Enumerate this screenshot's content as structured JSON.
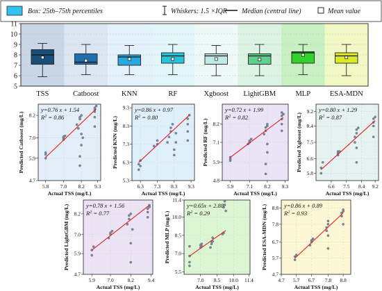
{
  "legend": {
    "box_label": "Box: 25th–75th percentiles",
    "whisker_label": "Whiskers: 1.5 ×IQR",
    "median_label": "Median (central line)",
    "mean_label": "Mean value"
  },
  "chart_data": [
    {
      "type": "box",
      "ylim": [
        5,
        11
      ],
      "yticks": [
        5,
        6,
        7,
        8,
        9,
        10,
        11
      ],
      "grid": true,
      "legend_position": "top",
      "categories": [
        "TSS",
        "Catboost",
        "KNN",
        "RF",
        "Xgboost",
        "LightGBM",
        "MLP",
        "ESA-MDN"
      ],
      "boxes": [
        {
          "name": "TSS",
          "whisker_low": 5.9,
          "q1": 7.1,
          "median": 8.0,
          "q3": 8.5,
          "whisker_high": 9.1,
          "mean": 7.75,
          "box_color": "#1a4f7a",
          "bg": "#c9d6e6"
        },
        {
          "name": "Catboost",
          "whisker_low": 6.1,
          "q1": 7.1,
          "median": 7.3,
          "q3": 8.1,
          "whisker_high": 9.0,
          "mean": 7.45,
          "box_color": "#1f6fae",
          "bg": "#dce6f2"
        },
        {
          "name": "KNN",
          "whisker_low": 6.1,
          "q1": 7.0,
          "median": 7.8,
          "q3": 8.0,
          "whisker_high": 8.9,
          "mean": 7.6,
          "box_color": "#2aa8e0",
          "bg": "#e3f1fa"
        },
        {
          "name": "RF",
          "whisker_low": 6.1,
          "q1": 7.2,
          "median": 7.9,
          "q3": 8.2,
          "whisker_high": 9.0,
          "mean": 7.6,
          "box_color": "#27c5dc",
          "bg": "#e2f5f8"
        },
        {
          "name": "Xgboost",
          "whisker_low": 6.0,
          "q1": 7.1,
          "median": 7.9,
          "q3": 8.1,
          "whisker_high": 8.9,
          "mean": 7.6,
          "box_color": "#bfe9e6",
          "bg": "#eef8f6"
        },
        {
          "name": "LightGBM",
          "whisker_low": 6.0,
          "q1": 7.1,
          "median": 7.9,
          "q3": 8.1,
          "whisker_high": 9.0,
          "mean": 7.55,
          "box_color": "#5dd08e",
          "bg": "#dcf3e4"
        },
        {
          "name": "MLP",
          "whisker_low": 6.1,
          "q1": 7.2,
          "median": 8.2,
          "q3": 8.3,
          "whisker_high": 9.0,
          "mean": 8.0,
          "box_color": "#33d12b",
          "bg": "#c9f0c2"
        },
        {
          "name": "ESA-MDN",
          "whisker_low": 6.0,
          "q1": 7.2,
          "median": 7.9,
          "q3": 8.2,
          "whisker_high": 9.0,
          "mean": 7.75,
          "box_color": "#dde827",
          "bg": "#f2f8c4"
        }
      ]
    },
    {
      "type": "scatter",
      "name": "Catboost",
      "equation": "y=0.76 x + 1.54",
      "r2_label": "R",
      "r2_value": "= 0.86",
      "xlabel": "Actual TSS (mg/L)",
      "ylabel": "Predicted Catboost (mg/L)",
      "xlim": [
        5.3,
        9.5
      ],
      "ylim": [
        4.7,
        8.8
      ],
      "xticks": [
        "5.8",
        "7.0",
        "8.2",
        "9.3"
      ],
      "xtick_vals": [
        5.8,
        7.0,
        8.2,
        9.3
      ],
      "yticks": [
        "4.7",
        "5.9",
        "7.0",
        "8.2"
      ],
      "ytick_vals": [
        4.7,
        5.9,
        7.0,
        8.2
      ],
      "bg": "#e3eef9",
      "fit": [
        [
          5.8,
          5.95
        ],
        [
          9.2,
          8.55
        ]
      ],
      "points": [
        [
          5.8,
          5.9
        ],
        [
          5.8,
          6.1
        ],
        [
          5.8,
          6.2
        ],
        [
          7.0,
          6.9
        ],
        [
          7.0,
          7.0
        ],
        [
          7.0,
          7.05
        ],
        [
          7.1,
          7.1
        ],
        [
          7.9,
          7.7
        ],
        [
          8.0,
          7.5
        ],
        [
          8.1,
          8.0
        ],
        [
          8.1,
          8.1
        ],
        [
          8.2,
          8.2
        ],
        [
          8.1,
          5.5
        ],
        [
          8.1,
          6.0
        ],
        [
          8.2,
          6.6
        ],
        [
          8.2,
          7.2
        ],
        [
          8.3,
          7.0
        ],
        [
          9.1,
          8.4
        ],
        [
          9.1,
          8.5
        ],
        [
          9.1,
          8.6
        ],
        [
          9.2,
          8.7
        ],
        [
          9.1,
          7.6
        ],
        [
          9.1,
          8.1
        ]
      ]
    },
    {
      "type": "scatter",
      "name": "KNN",
      "equation": "y=0.86 x + 0.97",
      "r2_label": "R",
      "r2_value": "= 0.80",
      "xlabel": "Actual TSS (mg/L)",
      "ylabel": "Predicted KNN (mg/L)",
      "xlim": [
        5.8,
        9.5
      ],
      "ylim": [
        5.3,
        9.5
      ],
      "xticks": [
        "6.3",
        "7.3",
        "8.3",
        "9.3"
      ],
      "xtick_vals": [
        6.3,
        7.3,
        8.3,
        9.3
      ],
      "yticks": [
        "5.3",
        "6.3",
        "7.3",
        "8.3",
        "9.3"
      ],
      "ytick_vals": [
        5.3,
        6.3,
        7.3,
        8.3,
        9.3
      ],
      "bg": "#e0f0fb",
      "fit": [
        [
          6.2,
          6.3
        ],
        [
          9.2,
          8.9
        ]
      ],
      "points": [
        [
          6.2,
          5.9
        ],
        [
          6.2,
          6.2
        ],
        [
          6.3,
          6.1
        ],
        [
          6.3,
          6.4
        ],
        [
          7.1,
          7.2
        ],
        [
          7.3,
          7.3
        ],
        [
          7.3,
          7.5
        ],
        [
          7.9,
          7.4
        ],
        [
          8.0,
          7.7
        ],
        [
          8.1,
          8.0
        ],
        [
          8.1,
          8.2
        ],
        [
          8.2,
          8.4
        ],
        [
          8.3,
          6.7
        ],
        [
          8.3,
          7.0
        ],
        [
          8.4,
          7.4
        ],
        [
          8.4,
          7.9
        ],
        [
          9.1,
          8.0
        ],
        [
          9.1,
          8.4
        ],
        [
          9.1,
          8.7
        ],
        [
          9.2,
          8.9
        ],
        [
          9.1,
          7.5
        ]
      ]
    },
    {
      "type": "scatter",
      "name": "RF",
      "equation": "y=0.72 x + 1.99",
      "r2_label": "R",
      "r2_value": "= 0.82",
      "xlabel": "Actual TSS (mg/L)",
      "ylabel": "Predicted RF (mg/L)",
      "xlim": [
        5.4,
        9.5
      ],
      "ylim": [
        4.8,
        9.4
      ],
      "xticks": [
        "5.9",
        "7.1",
        "8.2",
        "9.3"
      ],
      "xtick_vals": [
        5.9,
        7.1,
        8.2,
        9.3
      ],
      "yticks": [
        "4.8",
        "5.9",
        "7.1",
        "8.2"
      ],
      "ytick_vals": [
        4.8,
        5.9,
        7.1,
        8.2
      ],
      "bg": "#eae4f6",
      "fit": [
        [
          5.9,
          6.2
        ],
        [
          9.2,
          8.6
        ]
      ],
      "points": [
        [
          5.9,
          6.0
        ],
        [
          5.9,
          6.1
        ],
        [
          5.9,
          6.2
        ],
        [
          7.0,
          7.0
        ],
        [
          7.1,
          7.1
        ],
        [
          7.1,
          7.2
        ],
        [
          7.2,
          7.3
        ],
        [
          8.0,
          7.6
        ],
        [
          8.1,
          7.8
        ],
        [
          8.1,
          8.0
        ],
        [
          8.2,
          8.1
        ],
        [
          8.2,
          8.2
        ],
        [
          8.1,
          5.2
        ],
        [
          8.1,
          5.8
        ],
        [
          8.2,
          6.5
        ],
        [
          8.2,
          7.0
        ],
        [
          9.1,
          8.5
        ],
        [
          9.1,
          8.7
        ],
        [
          9.1,
          8.9
        ],
        [
          9.2,
          8.8
        ],
        [
          9.1,
          7.8
        ],
        [
          9.1,
          8.2
        ]
      ]
    },
    {
      "type": "scatter",
      "name": "Xgboost",
      "equation": "y=0.80 x + 1.29",
      "r2_label": "R",
      "r2_value": "= 0.87",
      "xlabel": "Actual TSS (mg/L)",
      "ylabel": "Predicted Xgboost (mg/L)",
      "xlim": [
        5.7,
        9.4
      ],
      "ylim": [
        5.4,
        9.6
      ],
      "xticks": [
        "6.6",
        "7.5",
        "8.4",
        "9.2"
      ],
      "xtick_vals": [
        6.6,
        7.5,
        8.4,
        9.2
      ],
      "yticks": [
        "5.8",
        "6.6",
        "7.5",
        "8.4",
        "9.2"
      ],
      "ytick_vals": [
        5.8,
        6.6,
        7.5,
        8.4,
        9.2
      ],
      "bg": "#e6f2ef",
      "fit": [
        [
          6.0,
          6.0
        ],
        [
          9.2,
          8.7
        ]
      ],
      "points": [
        [
          6.0,
          5.8
        ],
        [
          6.0,
          6.1
        ],
        [
          6.1,
          6.4
        ],
        [
          7.0,
          6.8
        ],
        [
          7.0,
          6.9
        ],
        [
          7.0,
          7.0
        ],
        [
          7.1,
          7.0
        ],
        [
          8.0,
          7.5
        ],
        [
          8.0,
          7.8
        ],
        [
          8.1,
          8.0
        ],
        [
          8.1,
          8.2
        ],
        [
          8.1,
          6.4
        ],
        [
          8.1,
          7.2
        ],
        [
          8.2,
          8.3
        ],
        [
          9.1,
          8.4
        ],
        [
          9.1,
          8.6
        ],
        [
          9.1,
          8.8
        ],
        [
          9.2,
          8.9
        ],
        [
          9.1,
          7.8
        ]
      ]
    },
    {
      "type": "scatter",
      "name": "LightGBM",
      "equation": "y=0.78 x + 1.56",
      "r2_label": "R",
      "r2_value": "= 0.77",
      "xlabel": "Actual TSS (mg/L)",
      "ylabel": "Predicted LightGBM (mg/L)",
      "xlim": [
        5.4,
        9.5
      ],
      "ylim": [
        4.7,
        9.0
      ],
      "xticks": [
        "5.9",
        "7.0",
        "8.2",
        "9.4"
      ],
      "xtick_vals": [
        5.9,
        7.0,
        8.2,
        9.4
      ],
      "yticks": [
        "4.7",
        "5.9",
        "7.0",
        "8.2"
      ],
      "ytick_vals": [
        4.7,
        5.9,
        7.0,
        8.2
      ],
      "bg": "#ece3f5",
      "fit": [
        [
          5.9,
          6.1
        ],
        [
          9.3,
          8.7
        ]
      ],
      "points": [
        [
          5.9,
          5.8
        ],
        [
          5.9,
          6.1
        ],
        [
          6.0,
          6.3
        ],
        [
          6.9,
          6.8
        ],
        [
          7.0,
          7.0
        ],
        [
          7.0,
          7.1
        ],
        [
          7.1,
          7.2
        ],
        [
          8.0,
          7.6
        ],
        [
          8.1,
          7.9
        ],
        [
          8.1,
          8.1
        ],
        [
          8.2,
          8.2
        ],
        [
          8.2,
          5.4
        ],
        [
          8.2,
          6.5
        ],
        [
          8.3,
          7.3
        ],
        [
          9.2,
          8.3
        ],
        [
          9.2,
          8.5
        ],
        [
          9.3,
          8.6
        ],
        [
          9.3,
          8.7
        ],
        [
          9.2,
          8.0
        ]
      ]
    },
    {
      "type": "scatter",
      "name": "MLP",
      "equation": "y=0.65x + 2.88",
      "r2_label": "R",
      "r2_value": "= 0.29",
      "xlabel": "Actual TSS (mg/L)",
      "ylabel": "Predicted MLP (mg/L)",
      "xlim": [
        5.5,
        11.5
      ],
      "ylim": [
        5.3,
        11.4
      ],
      "xticks": [
        "7.0",
        "8.5",
        "10.0",
        "11.4"
      ],
      "xtick_vals": [
        7.0,
        8.5,
        10.0,
        11.4
      ],
      "yticks": [
        "5.5",
        "7.0",
        "8.5",
        "10.0",
        "11.4"
      ],
      "ytick_vals": [
        5.5,
        7.0,
        8.5,
        10.0,
        11.4
      ],
      "bg": "#dcf5d2",
      "fit": [
        [
          6.0,
          6.8
        ],
        [
          9.3,
          8.9
        ]
      ],
      "points": [
        [
          6.0,
          6.0
        ],
        [
          6.0,
          6.3
        ],
        [
          6.0,
          6.8
        ],
        [
          6.0,
          7.6
        ],
        [
          7.0,
          7.5
        ],
        [
          7.0,
          7.7
        ],
        [
          7.1,
          7.6
        ],
        [
          7.1,
          7.8
        ],
        [
          7.9,
          7.5
        ],
        [
          8.0,
          7.8
        ],
        [
          8.0,
          8.0
        ],
        [
          8.1,
          8.0
        ],
        [
          8.1,
          8.3
        ],
        [
          9.0,
          8.6
        ],
        [
          9.1,
          8.7
        ],
        [
          9.1,
          10.8
        ],
        [
          9.2,
          11.0
        ],
        [
          9.2,
          11.3
        ],
        [
          9.3,
          10.5
        ]
      ]
    },
    {
      "type": "scatter",
      "name": "ESA-MDN",
      "equation": "y=0.86 x + 0.89",
      "r2_label": "R",
      "r2_value": "= 0.93",
      "xlabel": "Actual TSS (mg/L)",
      "ylabel": "Predicted ESA-MDN (mg/L)",
      "xlim": [
        4.7,
        9.3
      ],
      "ylim": [
        4.7,
        9.3
      ],
      "xticks": [
        "4.7",
        "5.7",
        "6.7",
        "7.8",
        "8.8"
      ],
      "xtick_vals": [
        4.7,
        5.7,
        6.7,
        7.8,
        8.8
      ],
      "yticks": [
        "4.7",
        "5.7",
        "6.7",
        "7.8",
        "8.8"
      ],
      "ytick_vals": [
        4.7,
        5.7,
        6.7,
        7.8,
        8.8
      ],
      "bg": "#fbf6d4",
      "fit": [
        [
          5.6,
          5.7
        ],
        [
          8.8,
          8.5
        ]
      ],
      "points": [
        [
          5.6,
          5.6
        ],
        [
          5.6,
          5.8
        ],
        [
          5.7,
          5.9
        ],
        [
          6.6,
          6.5
        ],
        [
          6.7,
          6.7
        ],
        [
          6.7,
          6.8
        ],
        [
          6.8,
          6.9
        ],
        [
          7.7,
          7.4
        ],
        [
          7.7,
          7.6
        ],
        [
          7.8,
          7.8
        ],
        [
          7.8,
          8.0
        ],
        [
          7.8,
          6.3
        ],
        [
          7.8,
          7.1
        ],
        [
          8.7,
          8.3
        ],
        [
          8.7,
          8.5
        ],
        [
          8.8,
          8.6
        ],
        [
          8.8,
          8.7
        ],
        [
          8.8,
          7.8
        ]
      ]
    }
  ]
}
